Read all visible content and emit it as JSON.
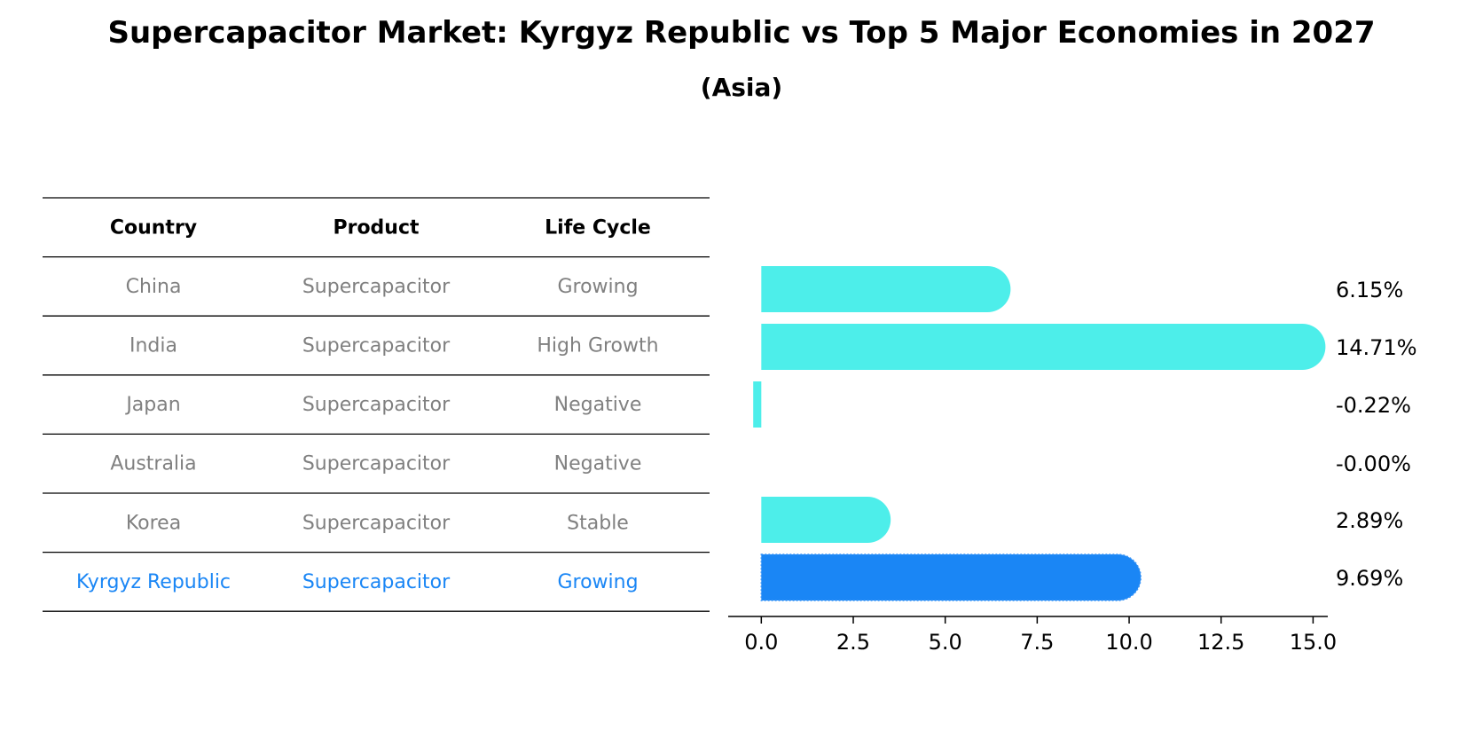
{
  "title": "Supercapacitor Market: Kyrgyz Republic vs Top 5 Major Economies in 2027",
  "subtitle": "(Asia)",
  "table": {
    "headers": [
      "Country",
      "Product",
      "Life Cycle"
    ],
    "rows": [
      {
        "country": "China",
        "product": "Supercapacitor",
        "life_cycle": "Growing",
        "highlight": false
      },
      {
        "country": "India",
        "product": "Supercapacitor",
        "life_cycle": "High Growth",
        "highlight": false
      },
      {
        "country": "Japan",
        "product": "Supercapacitor",
        "life_cycle": "Negative",
        "highlight": false
      },
      {
        "country": "Australia",
        "product": "Supercapacitor",
        "life_cycle": "Negative",
        "highlight": false
      },
      {
        "country": "Korea",
        "product": "Supercapacitor",
        "life_cycle": "Stable",
        "highlight": false
      },
      {
        "country": "Kyrgyz Republic",
        "product": "Supercapacitor",
        "life_cycle": "Growing",
        "highlight": true
      }
    ]
  },
  "chart_data": {
    "type": "bar",
    "orientation": "horizontal",
    "categories": [
      "China",
      "India",
      "Japan",
      "Australia",
      "Korea",
      "Kyrgyz Republic"
    ],
    "values": [
      6.15,
      14.71,
      -0.22,
      -0.0,
      2.89,
      9.69
    ],
    "value_labels": [
      "6.15%",
      "14.71%",
      "-0.22%",
      "-0.00%",
      "2.89%",
      "9.69%"
    ],
    "xlim": [
      -0.9,
      15.4
    ],
    "xticks": [
      0.0,
      2.5,
      5.0,
      7.5,
      10.0,
      12.5,
      15.0
    ],
    "xtick_labels": [
      "0.0",
      "2.5",
      "5.0",
      "7.5",
      "10.0",
      "12.5",
      "15.0"
    ],
    "xlabel": "",
    "ylabel": "",
    "grid": false,
    "highlight_category": "Kyrgyz Republic"
  },
  "colors": {
    "bar": "#4deeea",
    "highlight_bar": "#1a86f5",
    "text_muted": "#808080",
    "text_highlight": "#1a86f5",
    "text": "#000000",
    "rule": "#000000"
  }
}
